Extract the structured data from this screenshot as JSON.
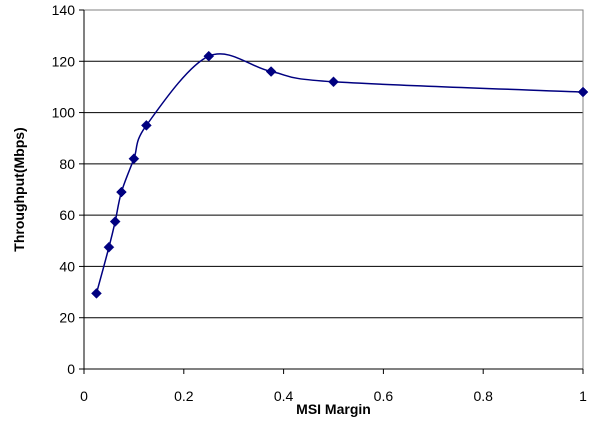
{
  "chart_data": {
    "type": "line",
    "title": "",
    "xlabel": "MSI Margin",
    "ylabel": "Throughput(Mbps)",
    "xlim": [
      0,
      1
    ],
    "ylim": [
      0,
      140
    ],
    "x_ticks": [
      0,
      0.2,
      0.4,
      0.6,
      0.8,
      1
    ],
    "x_tick_labels": [
      "0",
      "0.2",
      "0.4",
      "0.6",
      "0.8",
      "1"
    ],
    "y_ticks": [
      0,
      20,
      40,
      60,
      80,
      100,
      120,
      140
    ],
    "y_tick_labels": [
      "0",
      "20",
      "40",
      "60",
      "80",
      "100",
      "120",
      "140"
    ],
    "grid": "horizontal",
    "legend": "none",
    "series": [
      {
        "color": "#000080",
        "marker": "diamond",
        "smooth": true,
        "x": [
          0.025,
          0.05,
          0.0625,
          0.075,
          0.1,
          0.125,
          0.25,
          0.375,
          0.5,
          1.0
        ],
        "y": [
          29.5,
          47.5,
          57.5,
          69,
          82,
          95,
          122,
          116,
          112,
          108
        ]
      }
    ]
  }
}
